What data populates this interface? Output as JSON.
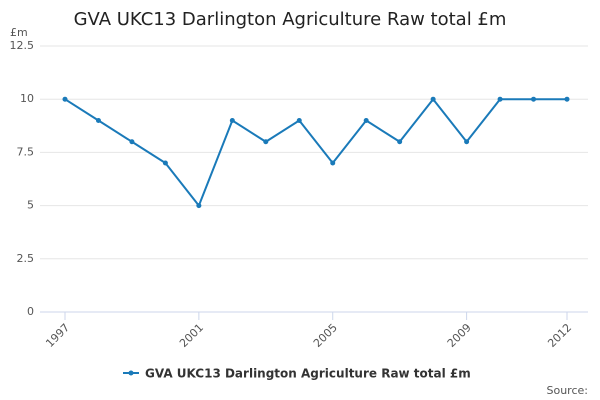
{
  "chart_data": {
    "type": "line",
    "title": "GVA UKC13 Darlington Agriculture Raw total £m",
    "y_label": "£m",
    "source": "Source:",
    "x": [
      1997,
      1998,
      1999,
      2000,
      2001,
      2002,
      2003,
      2004,
      2005,
      2006,
      2007,
      2008,
      2009,
      2010,
      2011,
      2012
    ],
    "series": [
      {
        "name": "GVA UKC13 Darlington Agriculture Raw total £m",
        "color": "#1a7ab9",
        "values": [
          10,
          9,
          8,
          7,
          5,
          9,
          8,
          9,
          7,
          9,
          8,
          10,
          8,
          10,
          10,
          10
        ]
      }
    ],
    "xlim": [
      1997,
      2012
    ],
    "xticks": [
      1997,
      2001,
      2005,
      2009,
      2012
    ],
    "ylim": [
      0,
      12.5
    ],
    "yticks": [
      0,
      2.5,
      5,
      7.5,
      10,
      12.5
    ],
    "grid": true
  }
}
